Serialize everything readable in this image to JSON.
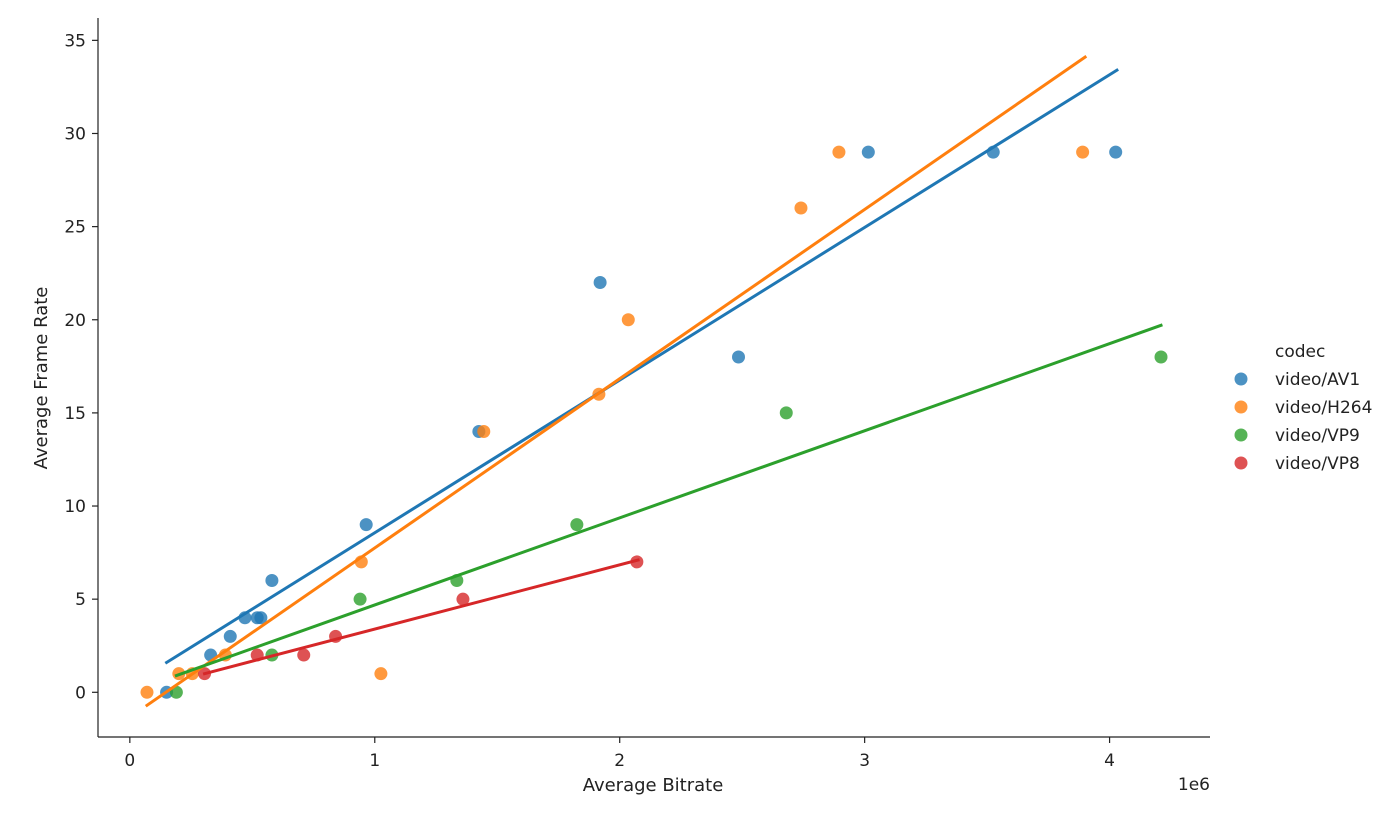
{
  "chart_data": {
    "type": "scatter",
    "title": "",
    "xlabel": "Average Bitrate",
    "ylabel": "Average Frame Rate",
    "x_offset_text": "1e6",
    "x_scale": 1000000,
    "xlim": [
      -130000,
      4410000
    ],
    "ylim": [
      -2.4,
      36.2
    ],
    "xticks": [
      0,
      1000000,
      2000000,
      3000000,
      4000000
    ],
    "xtick_labels": [
      "0",
      "1",
      "2",
      "3",
      "4"
    ],
    "yticks": [
      0,
      5,
      10,
      15,
      20,
      25,
      30,
      35
    ],
    "ytick_labels": [
      "0",
      "5",
      "10",
      "15",
      "20",
      "25",
      "30",
      "35"
    ],
    "grid": false,
    "legend_position": "right",
    "legend_title": "codec",
    "series": [
      {
        "name": "video/AV1",
        "color": "#1f77b4",
        "points": [
          [
            150000,
            0
          ],
          [
            330000,
            2
          ],
          [
            410000,
            3
          ],
          [
            470000,
            4
          ],
          [
            520000,
            4
          ],
          [
            535000,
            4
          ],
          [
            580000,
            6
          ],
          [
            965000,
            9
          ],
          [
            1425000,
            14
          ],
          [
            1920000,
            22
          ],
          [
            2485000,
            18
          ],
          [
            3015000,
            29
          ],
          [
            3525000,
            29
          ],
          [
            4025000,
            29
          ]
        ],
        "fit": [
          [
            150000,
            1.6
          ],
          [
            4030000,
            33.4
          ]
        ]
      },
      {
        "name": "video/H264",
        "color": "#ff7f0e",
        "points": [
          [
            70000,
            0
          ],
          [
            200000,
            1
          ],
          [
            255000,
            1
          ],
          [
            390000,
            2
          ],
          [
            945000,
            7
          ],
          [
            1025000,
            1
          ],
          [
            1445000,
            14
          ],
          [
            1915000,
            16
          ],
          [
            2035000,
            20
          ],
          [
            2740000,
            26
          ],
          [
            2895000,
            29
          ],
          [
            3890000,
            29
          ]
        ],
        "fit": [
          [
            70000,
            -0.7
          ],
          [
            3900000,
            34.1
          ]
        ]
      },
      {
        "name": "video/VP9",
        "color": "#2ca02c",
        "points": [
          [
            190000,
            0
          ],
          [
            580000,
            2
          ],
          [
            940000,
            5
          ],
          [
            1335000,
            6
          ],
          [
            1825000,
            9
          ],
          [
            2680000,
            15
          ],
          [
            4210000,
            18
          ]
        ],
        "fit": [
          [
            190000,
            0.9
          ],
          [
            4210000,
            19.7
          ]
        ]
      },
      {
        "name": "video/VP8",
        "color": "#d62728",
        "points": [
          [
            305000,
            1
          ],
          [
            520000,
            2
          ],
          [
            710000,
            2
          ],
          [
            840000,
            3
          ],
          [
            1360000,
            5
          ],
          [
            2070000,
            7
          ]
        ],
        "fit": [
          [
            305000,
            1.0
          ],
          [
            2075000,
            7.1
          ]
        ]
      }
    ]
  }
}
